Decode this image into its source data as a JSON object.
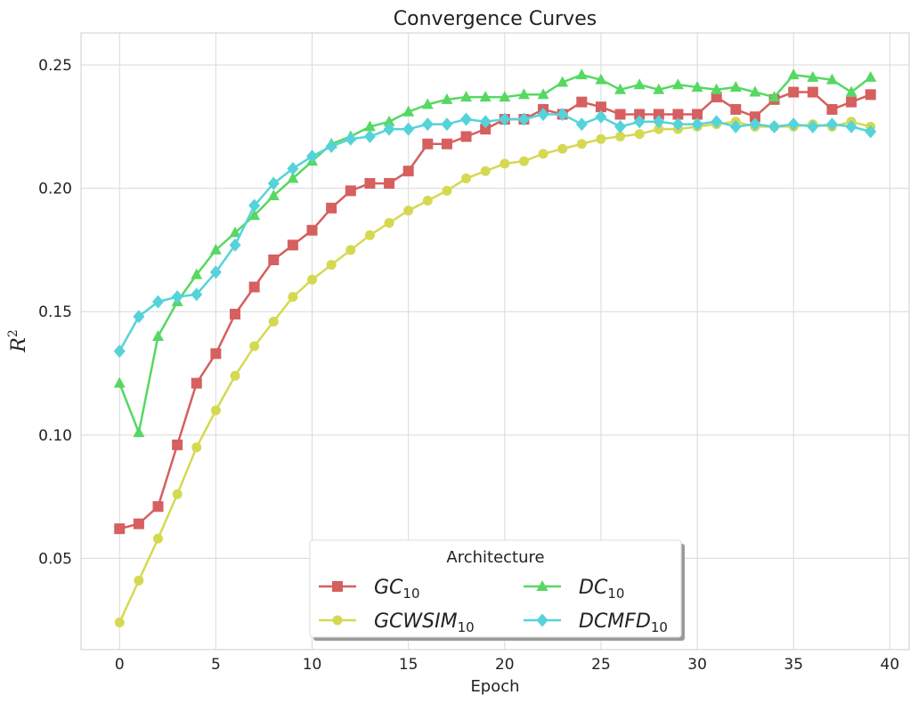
{
  "chart_data": {
    "type": "line",
    "title": "Convergence Curves",
    "xlabel": "Epoch",
    "ylabel": "R",
    "ylabel_superscript": "2",
    "xlim": [
      -2,
      41
    ],
    "ylim": [
      0.013,
      0.263
    ],
    "x_ticks": [
      0,
      5,
      10,
      15,
      20,
      25,
      30,
      35,
      40
    ],
    "y_ticks": [
      0.05,
      0.1,
      0.15,
      0.2,
      0.25
    ],
    "y_tick_labels": [
      "0.05",
      "0.10",
      "0.15",
      "0.20",
      "0.25"
    ],
    "grid": true,
    "legend": {
      "title": "Architecture",
      "placement": "bottom-center",
      "columns": 2
    },
    "x": [
      0,
      1,
      2,
      3,
      4,
      5,
      6,
      7,
      8,
      9,
      10,
      11,
      12,
      13,
      14,
      15,
      16,
      17,
      18,
      19,
      20,
      21,
      22,
      23,
      24,
      25,
      26,
      27,
      28,
      29,
      30,
      31,
      32,
      33,
      34,
      35,
      36,
      37,
      38,
      39
    ],
    "series": [
      {
        "name": "GC",
        "name_sub": "10",
        "color": "#d65f5f",
        "marker": "square",
        "values": [
          0.062,
          0.064,
          0.071,
          0.096,
          0.121,
          0.133,
          0.149,
          0.16,
          0.171,
          0.177,
          0.183,
          0.192,
          0.199,
          0.202,
          0.202,
          0.207,
          0.218,
          0.218,
          0.221,
          0.224,
          0.228,
          0.228,
          0.232,
          0.23,
          0.235,
          0.233,
          0.23,
          0.23,
          0.23,
          0.23,
          0.23,
          0.237,
          0.232,
          0.229,
          0.236,
          0.239,
          0.239,
          0.232,
          0.235,
          0.238
        ]
      },
      {
        "name": "GCWSIM",
        "name_sub": "10",
        "color": "#d5d951",
        "marker": "circle",
        "values": [
          0.024,
          0.041,
          0.058,
          0.076,
          0.095,
          0.11,
          0.124,
          0.136,
          0.146,
          0.156,
          0.163,
          0.169,
          0.175,
          0.181,
          0.186,
          0.191,
          0.195,
          0.199,
          0.204,
          0.207,
          0.21,
          0.211,
          0.214,
          0.216,
          0.218,
          0.22,
          0.221,
          0.222,
          0.224,
          0.224,
          0.225,
          0.226,
          0.227,
          0.225,
          0.225,
          0.225,
          0.226,
          0.225,
          0.227,
          0.225
        ]
      },
      {
        "name": "DC",
        "name_sub": "10",
        "color": "#56d862",
        "marker": "triangle",
        "values": [
          0.121,
          0.101,
          0.14,
          0.154,
          0.165,
          0.175,
          0.182,
          0.189,
          0.197,
          0.204,
          0.211,
          0.218,
          0.221,
          0.225,
          0.227,
          0.231,
          0.234,
          0.236,
          0.237,
          0.237,
          0.237,
          0.238,
          0.238,
          0.243,
          0.246,
          0.244,
          0.24,
          0.242,
          0.24,
          0.242,
          0.241,
          0.24,
          0.241,
          0.239,
          0.237,
          0.246,
          0.245,
          0.244,
          0.239,
          0.245
        ]
      },
      {
        "name": "DCMFD",
        "name_sub": "10",
        "color": "#55d3d9",
        "marker": "diamond",
        "values": [
          0.134,
          0.148,
          0.154,
          0.156,
          0.157,
          0.166,
          0.177,
          0.193,
          0.202,
          0.208,
          0.213,
          0.217,
          0.22,
          0.221,
          0.224,
          0.224,
          0.226,
          0.226,
          0.228,
          0.227,
          0.228,
          0.228,
          0.23,
          0.23,
          0.226,
          0.229,
          0.225,
          0.227,
          0.227,
          0.226,
          0.226,
          0.227,
          0.225,
          0.226,
          0.225,
          0.226,
          0.225,
          0.226,
          0.225,
          0.223
        ]
      }
    ]
  }
}
